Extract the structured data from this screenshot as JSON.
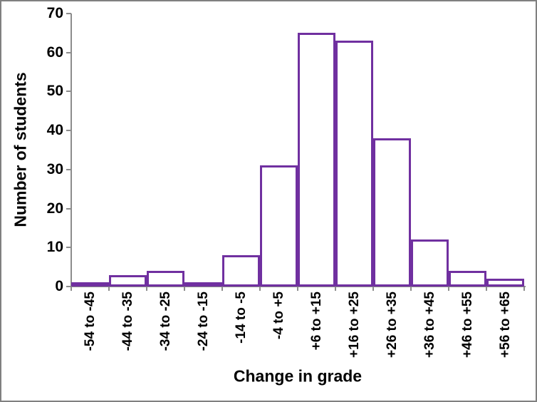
{
  "window": {
    "background_color": "#FFFFFF",
    "border_color": "#808080"
  },
  "chart_data": {
    "type": "bar",
    "title": "",
    "xlabel": "Change in grade",
    "ylabel": "Number of students",
    "categories": [
      "-54 to -45",
      "-44 to -35",
      "-34 to -25",
      "-24 to -15",
      "-14 to -5",
      "-4 to +5",
      "+6 to +15",
      "+16 to +25",
      "+26 to +35",
      "+36 to +45",
      "+46 to +55",
      "+56 to +65"
    ],
    "values": [
      1,
      3,
      4,
      1,
      8,
      31,
      65,
      63,
      38,
      12,
      4,
      2
    ],
    "ylim": [
      0,
      70
    ],
    "yticks": [
      0,
      10,
      20,
      30,
      40,
      50,
      60,
      70
    ],
    "grid": false,
    "legend": "none",
    "bar_fill_color": "#FFFFFF",
    "bar_border_color": "#7030A0",
    "axis_color": "#8C8C8C",
    "text_color": "#000000"
  }
}
